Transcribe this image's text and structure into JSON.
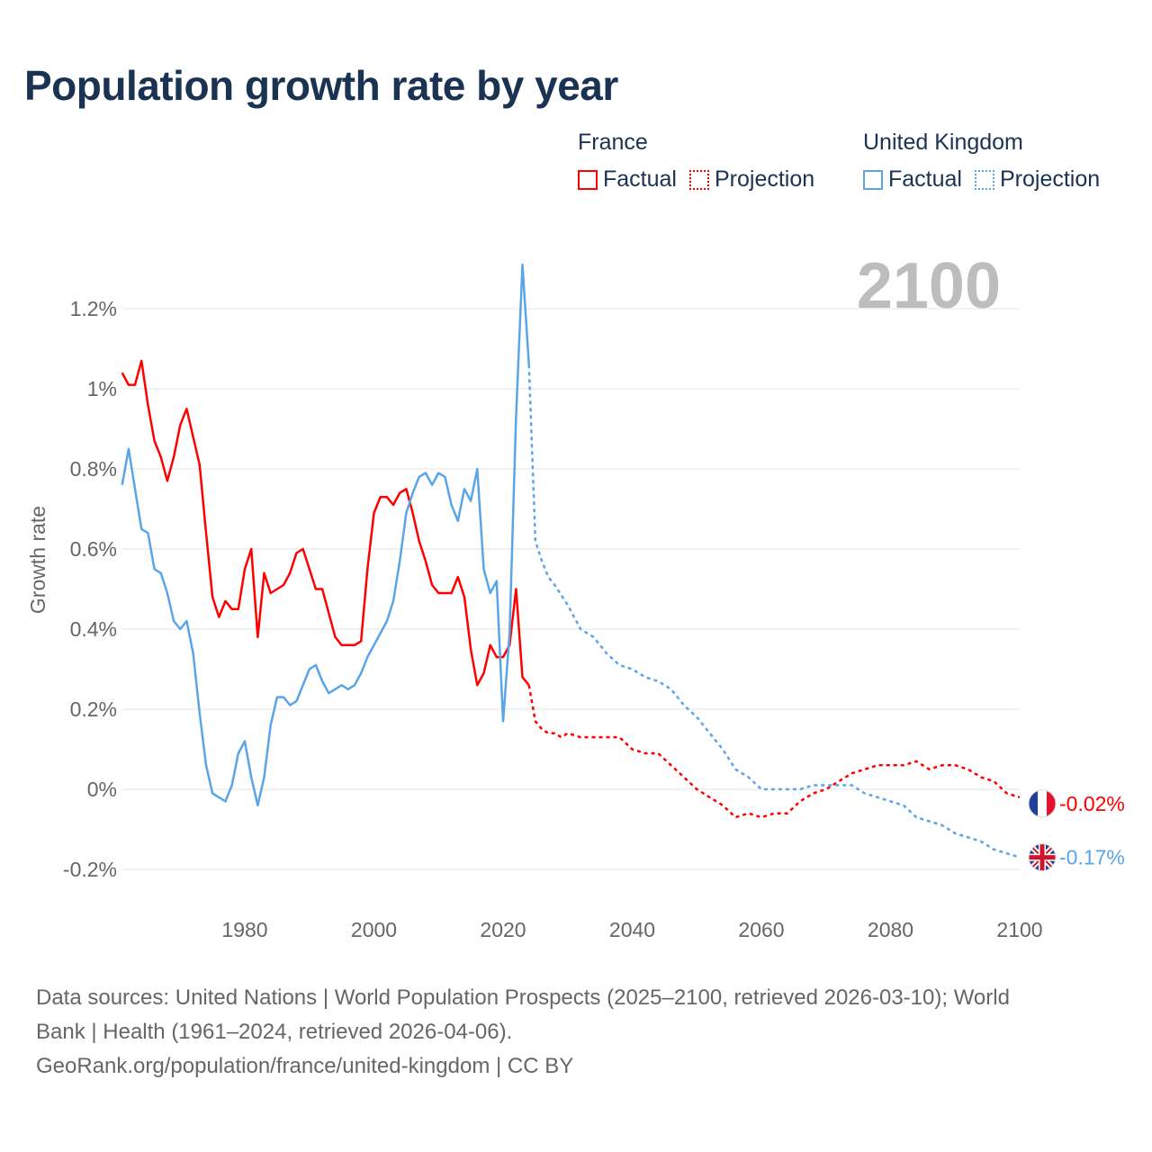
{
  "title": "Population growth rate by year",
  "legend": {
    "groups": [
      {
        "name": "France",
        "factual": "Factual",
        "projection": "Projection",
        "color": "#ff0000"
      },
      {
        "name": "United Kingdom",
        "factual": "Factual",
        "projection": "Projection",
        "color": "#5aa5e8"
      }
    ]
  },
  "year_watermark": "2100",
  "sources": {
    "line1": "Data sources: United Nations | World Population Prospects (2025–2100, retrieved 2026-03-10); World",
    "line2": "Bank | Health (1961–2024, retrieved 2026-04-06).",
    "line3": "GeoRank.org/population/france/united-kingdom | CC BY"
  },
  "chart_data": {
    "type": "line",
    "title": "Population growth rate by year",
    "xlabel": "",
    "ylabel": "Growth rate",
    "xlim": [
      1961,
      2100
    ],
    "ylim": [
      -0.3,
      1.35
    ],
    "x_ticks": [
      1980,
      2000,
      2020,
      2040,
      2060,
      2080,
      2100
    ],
    "y_ticks": [
      {
        "v": -0.2,
        "label": "-0.2%"
      },
      {
        "v": 0,
        "label": "0%"
      },
      {
        "v": 0.2,
        "label": "0.2%"
      },
      {
        "v": 0.4,
        "label": "0.4%"
      },
      {
        "v": 0.6,
        "label": "0.6%"
      },
      {
        "v": 0.8,
        "label": "0.8%"
      },
      {
        "v": 1.0,
        "label": "1%"
      },
      {
        "v": 1.2,
        "label": "1.2%"
      }
    ],
    "grid": true,
    "legend_position": "top-right",
    "series": [
      {
        "name": "France",
        "color": "#ff0000",
        "end_label": "-0.02%",
        "factual_start_year": 1961,
        "factual": [
          1.04,
          1.01,
          1.01,
          1.07,
          0.96,
          0.87,
          0.83,
          0.77,
          0.83,
          0.91,
          0.95,
          0.88,
          0.81,
          0.64,
          0.48,
          0.43,
          0.47,
          0.45,
          0.45,
          0.55,
          0.6,
          0.38,
          0.54,
          0.49,
          0.5,
          0.51,
          0.54,
          0.59,
          0.6,
          0.55,
          0.5,
          0.5,
          0.44,
          0.38,
          0.36,
          0.36,
          0.36,
          0.37,
          0.55,
          0.69,
          0.73,
          0.73,
          0.71,
          0.74,
          0.75,
          0.69,
          0.62,
          0.57,
          0.51,
          0.49,
          0.49,
          0.49,
          0.53,
          0.48,
          0.35,
          0.26,
          0.29,
          0.36,
          0.33,
          0.33,
          0.36,
          0.5,
          0.28,
          0.26
        ],
        "projection": [
          [
            2024,
            0.26
          ],
          [
            2025,
            0.17
          ],
          [
            2026,
            0.15
          ],
          [
            2027,
            0.14
          ],
          [
            2028,
            0.14
          ],
          [
            2029,
            0.13
          ],
          [
            2030,
            0.14
          ],
          [
            2032,
            0.13
          ],
          [
            2034,
            0.13
          ],
          [
            2036,
            0.13
          ],
          [
            2038,
            0.13
          ],
          [
            2040,
            0.1
          ],
          [
            2042,
            0.09
          ],
          [
            2044,
            0.09
          ],
          [
            2046,
            0.06
          ],
          [
            2048,
            0.03
          ],
          [
            2050,
            0.0
          ],
          [
            2052,
            -0.02
          ],
          [
            2054,
            -0.04
          ],
          [
            2056,
            -0.07
          ],
          [
            2058,
            -0.06
          ],
          [
            2060,
            -0.07
          ],
          [
            2062,
            -0.06
          ],
          [
            2064,
            -0.06
          ],
          [
            2066,
            -0.03
          ],
          [
            2068,
            -0.01
          ],
          [
            2070,
            0.0
          ],
          [
            2072,
            0.02
          ],
          [
            2074,
            0.04
          ],
          [
            2076,
            0.05
          ],
          [
            2078,
            0.06
          ],
          [
            2080,
            0.06
          ],
          [
            2082,
            0.06
          ],
          [
            2084,
            0.07
          ],
          [
            2086,
            0.05
          ],
          [
            2088,
            0.06
          ],
          [
            2090,
            0.06
          ],
          [
            2092,
            0.05
          ],
          [
            2094,
            0.03
          ],
          [
            2096,
            0.02
          ],
          [
            2098,
            -0.01
          ],
          [
            2100,
            -0.02
          ]
        ]
      },
      {
        "name": "United Kingdom",
        "color": "#5aa5e8",
        "end_label": "-0.17%",
        "factual_start_year": 1961,
        "factual": [
          0.76,
          0.85,
          0.75,
          0.65,
          0.64,
          0.55,
          0.54,
          0.49,
          0.42,
          0.4,
          0.42,
          0.34,
          0.19,
          0.06,
          -0.01,
          -0.02,
          -0.03,
          0.01,
          0.09,
          0.12,
          0.03,
          -0.04,
          0.03,
          0.16,
          0.23,
          0.23,
          0.21,
          0.22,
          0.26,
          0.3,
          0.31,
          0.27,
          0.24,
          0.25,
          0.26,
          0.25,
          0.26,
          0.29,
          0.33,
          0.36,
          0.39,
          0.42,
          0.47,
          0.57,
          0.69,
          0.74,
          0.78,
          0.79,
          0.76,
          0.79,
          0.78,
          0.71,
          0.67,
          0.75,
          0.72,
          0.8,
          0.55,
          0.49,
          0.52,
          0.17,
          0.39,
          0.93,
          1.31,
          1.06
        ],
        "projection": [
          [
            2024,
            1.06
          ],
          [
            2025,
            0.62
          ],
          [
            2026,
            0.57
          ],
          [
            2027,
            0.53
          ],
          [
            2028,
            0.51
          ],
          [
            2030,
            0.46
          ],
          [
            2032,
            0.4
          ],
          [
            2034,
            0.38
          ],
          [
            2036,
            0.34
          ],
          [
            2038,
            0.31
          ],
          [
            2040,
            0.3
          ],
          [
            2042,
            0.28
          ],
          [
            2044,
            0.27
          ],
          [
            2046,
            0.25
          ],
          [
            2048,
            0.21
          ],
          [
            2050,
            0.18
          ],
          [
            2052,
            0.14
          ],
          [
            2054,
            0.1
          ],
          [
            2056,
            0.05
          ],
          [
            2058,
            0.03
          ],
          [
            2060,
            0.0
          ],
          [
            2062,
            0.0
          ],
          [
            2064,
            0.0
          ],
          [
            2066,
            0.0
          ],
          [
            2068,
            0.01
          ],
          [
            2070,
            0.01
          ],
          [
            2072,
            0.01
          ],
          [
            2074,
            0.01
          ],
          [
            2076,
            -0.01
          ],
          [
            2078,
            -0.02
          ],
          [
            2080,
            -0.03
          ],
          [
            2082,
            -0.04
          ],
          [
            2084,
            -0.07
          ],
          [
            2086,
            -0.08
          ],
          [
            2088,
            -0.09
          ],
          [
            2090,
            -0.11
          ],
          [
            2092,
            -0.12
          ],
          [
            2094,
            -0.13
          ],
          [
            2096,
            -0.15
          ],
          [
            2098,
            -0.16
          ],
          [
            2100,
            -0.17
          ]
        ]
      }
    ]
  }
}
